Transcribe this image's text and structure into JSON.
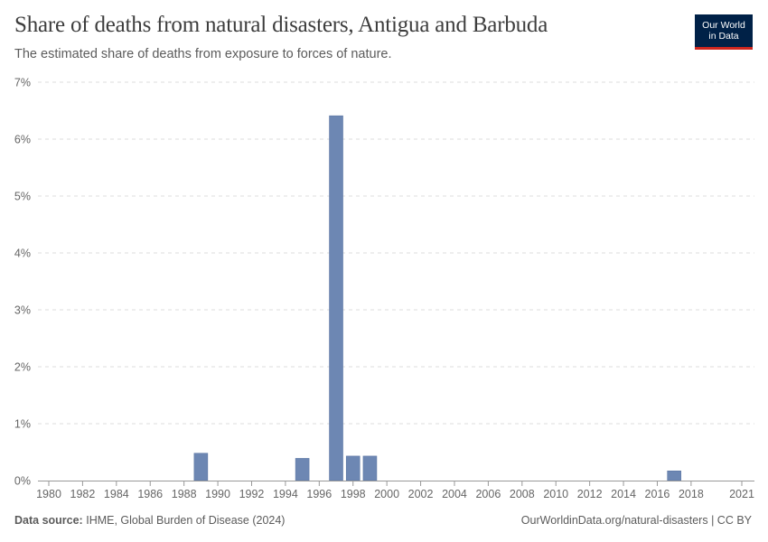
{
  "header": {
    "title": "Share of deaths from natural disasters, Antigua and Barbuda",
    "subtitle": "The estimated share of deaths from exposure to forces of nature."
  },
  "logo": {
    "line1": "Our World",
    "line2": "in Data"
  },
  "footer": {
    "source_label": "Data source:",
    "source_text": "IHME, Global Burden of Disease (2024)",
    "credit": "OurWorldinData.org/natural-disasters | CC BY"
  },
  "colors": {
    "bar": "#6d87b3",
    "logo_bg": "#002147",
    "logo_accent": "#ce261e"
  },
  "chart_data": {
    "type": "bar",
    "title": "Share of deaths from natural disasters, Antigua and Barbuda",
    "xlabel": "",
    "ylabel": "",
    "ylim": [
      0,
      7
    ],
    "xlim": [
      1980,
      2021
    ],
    "y_ticks": [
      0,
      1,
      2,
      3,
      4,
      5,
      6,
      7
    ],
    "y_tick_labels": [
      "0%",
      "1%",
      "2%",
      "3%",
      "4%",
      "5%",
      "6%",
      "7%"
    ],
    "x_ticks": [
      1980,
      1982,
      1984,
      1986,
      1988,
      1990,
      1992,
      1994,
      1996,
      1998,
      2000,
      2002,
      2004,
      2006,
      2008,
      2010,
      2012,
      2014,
      2016,
      2018,
      2021
    ],
    "x_tick_labels": [
      "1980",
      "1982",
      "1984",
      "1986",
      "1988",
      "1990",
      "1992",
      "1994",
      "1996",
      "1998",
      "2000",
      "2002",
      "2004",
      "2006",
      "2008",
      "2010",
      "2012",
      "2014",
      "2016",
      "2018",
      "2021"
    ],
    "grid": true,
    "unit": "%",
    "categories": [
      1989,
      1995,
      1997,
      1998,
      1999,
      2017
    ],
    "values": [
      0.48,
      0.39,
      6.41,
      0.43,
      0.43,
      0.17
    ]
  }
}
